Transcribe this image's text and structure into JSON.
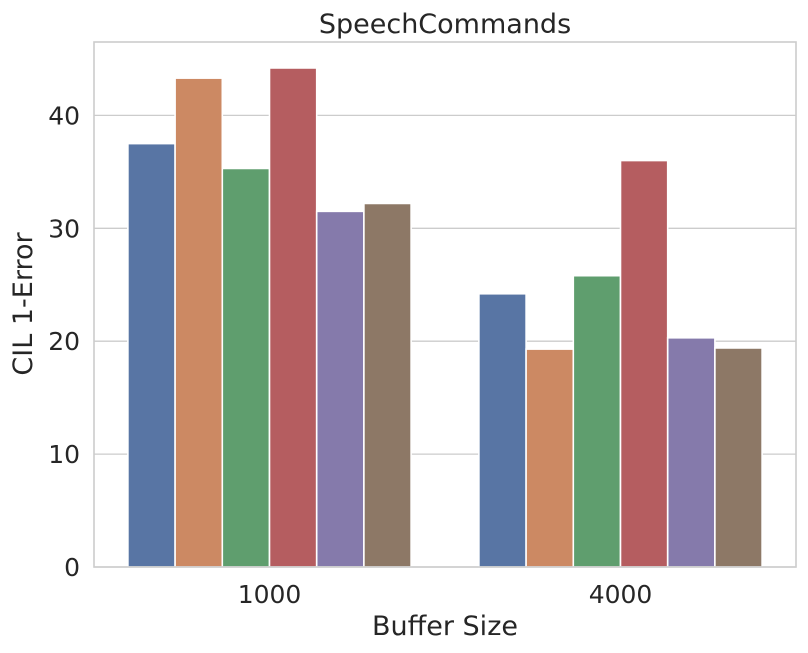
{
  "chart_data": {
    "type": "bar",
    "title": "SpeechCommands",
    "xlabel": "Buffer Size",
    "ylabel": "CIL 1-Error",
    "categories": [
      "1000",
      "4000"
    ],
    "yticks": [
      0,
      10,
      20,
      30,
      40
    ],
    "ylim": [
      0,
      46.5
    ],
    "grid": true,
    "legend": "none",
    "series": [
      {
        "values": [
          37.5,
          24.2
        ],
        "color": "#5875a4"
      },
      {
        "values": [
          43.3,
          19.3
        ],
        "color": "#cc8963"
      },
      {
        "values": [
          35.3,
          25.8
        ],
        "color": "#5f9e6e"
      },
      {
        "values": [
          44.2,
          36.0
        ],
        "color": "#b55d60"
      },
      {
        "values": [
          31.5,
          20.3
        ],
        "color": "#857aab"
      },
      {
        "values": [
          32.2,
          19.4
        ],
        "color": "#8d7866"
      }
    ]
  }
}
